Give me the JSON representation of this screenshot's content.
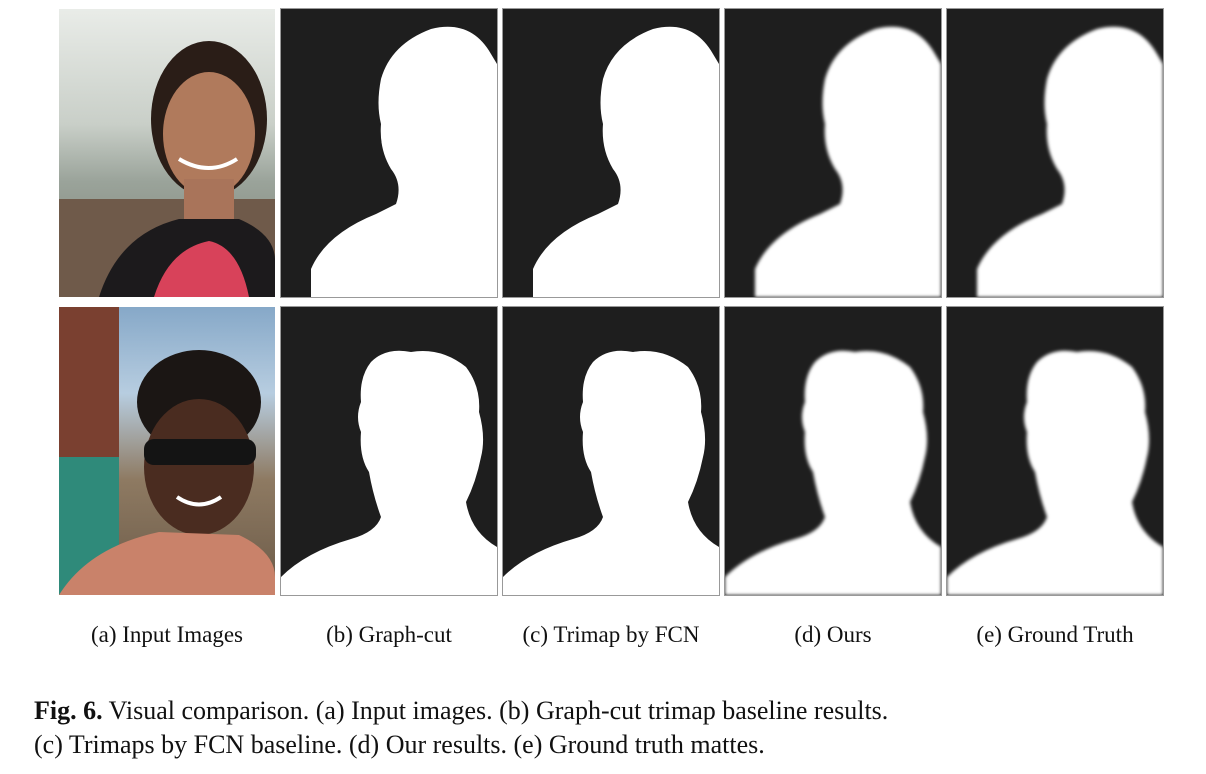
{
  "columns": [
    {
      "id": "input",
      "label": "(a) Input Images"
    },
    {
      "id": "graphcut",
      "label": "(b) Graph-cut"
    },
    {
      "id": "trimap_fcn",
      "label": "(c) Trimap by FCN"
    },
    {
      "id": "ours",
      "label": "(d) Ours"
    },
    {
      "id": "ground_truth",
      "label": "(e) Ground Truth"
    }
  ],
  "caption": {
    "prefix": "Fig. 6.",
    "line1": "Visual comparison. (a) Input images. (b) Graph-cut trimap baseline results.",
    "line2": "(c) Trimaps by FCN baseline. (d) Our results. (e) Ground truth mattes."
  },
  "colors": {
    "matte_background": "#1e1e1e",
    "matte_foreground": "#ffffff"
  }
}
